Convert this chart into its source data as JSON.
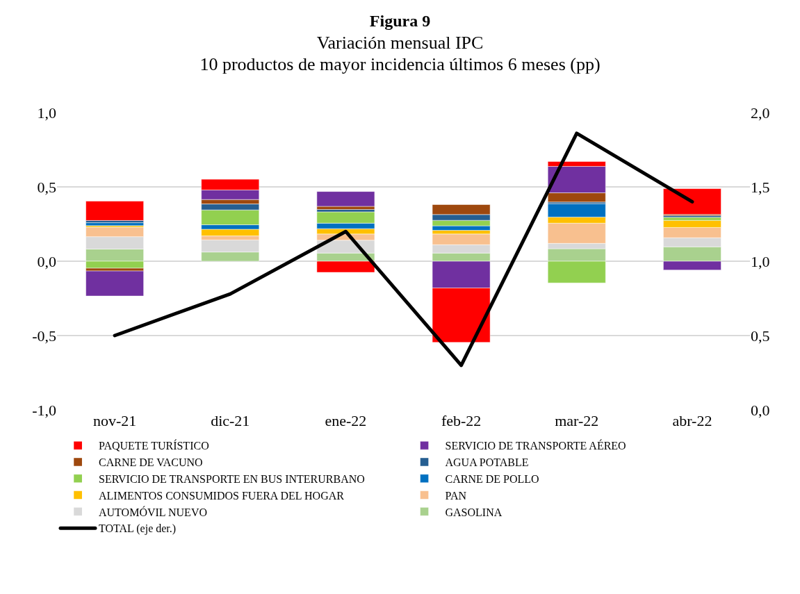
{
  "chart_data": {
    "type": "bar",
    "stacked": true,
    "title": "Figura 9",
    "subtitle": "Variación mensual IPC\n10 productos de mayor incidencia últimos 6 meses (pp)",
    "categories": [
      "nov-21",
      "dic-21",
      "ene-22",
      "feb-22",
      "mar-22",
      "abr-22"
    ],
    "series": [
      {
        "name": "TOTAL (eje der.)",
        "type": "line",
        "axis": "y2",
        "color": "#000000",
        "values": [
          0.5,
          0.78,
          1.2,
          0.3,
          1.86,
          1.4
        ]
      },
      {
        "name": "GASOLINA",
        "color": "#a9d18e",
        "values": [
          0.082,
          0.062,
          0.055,
          0.055,
          0.084,
          0.097
        ]
      },
      {
        "name": "AUTOMÓVIL NUEVO",
        "color": "#d9d9d9",
        "values": [
          0.083,
          0.081,
          0.086,
          0.056,
          0.036,
          0.061
        ]
      },
      {
        "name": "PAN",
        "color": "#f8c08f",
        "values": [
          0.064,
          0.027,
          0.042,
          0.072,
          0.136,
          0.069
        ]
      },
      {
        "name": "ALIMENTOS CONSUMIDOS FUERA DEL HOGAR",
        "color": "#ffc000",
        "values": [
          0.01,
          0.045,
          0.036,
          0.025,
          0.041,
          0.048
        ]
      },
      {
        "name": "CARNE DE POLLO",
        "color": "#0070c0",
        "values": [
          0.02,
          0.03,
          0.037,
          0.03,
          0.09,
          null
        ]
      },
      {
        "name": "SERVICIO DE TRANSPORTE EN BUS INTERURBANO",
        "color": "#92d050",
        "values": [
          -0.047,
          0.1,
          0.076,
          0.037,
          -0.146,
          0.02
        ]
      },
      {
        "name": "AGUA POTABLE",
        "color": "#255e91",
        "values": [
          0.015,
          0.04,
          0.016,
          0.039,
          0.011,
          0.012
        ]
      },
      {
        "name": "CARNE DE VACUNO",
        "color": "#9e480e",
        "values": [
          -0.019,
          0.03,
          0.021,
          0.067,
          0.062,
          0.008
        ]
      },
      {
        "name": "SERVICIO DE TRANSPORTE AÉREO",
        "color": "#7030a0",
        "values": [
          -0.168,
          0.064,
          0.1,
          -0.18,
          0.178,
          -0.059
        ]
      },
      {
        "name": "PAQUETE TURÍSTICO",
        "color": "#ff0000",
        "values": [
          0.13,
          0.072,
          -0.075,
          -0.366,
          0.033,
          0.173
        ]
      }
    ],
    "ylim": [
      -1,
      1
    ],
    "yticks": [
      {
        "value": -1,
        "label": "-1,0"
      },
      {
        "value": -0.5,
        "label": "-0,5"
      },
      {
        "value": 0,
        "label": "0,0"
      },
      {
        "value": 0.5,
        "label": "0,5"
      },
      {
        "value": 1,
        "label": "1,0"
      }
    ],
    "y2lim": [
      0,
      2
    ],
    "y2ticks": [
      {
        "value": 0,
        "label": "0,0"
      },
      {
        "value": 0.5,
        "label": "0,5"
      },
      {
        "value": 1,
        "label": "1,0"
      },
      {
        "value": 1.5,
        "label": "1,5"
      },
      {
        "value": 2,
        "label": "2,0"
      }
    ],
    "grid": "y",
    "legend": "bottom",
    "line_style": "solid",
    "marker": "none"
  }
}
